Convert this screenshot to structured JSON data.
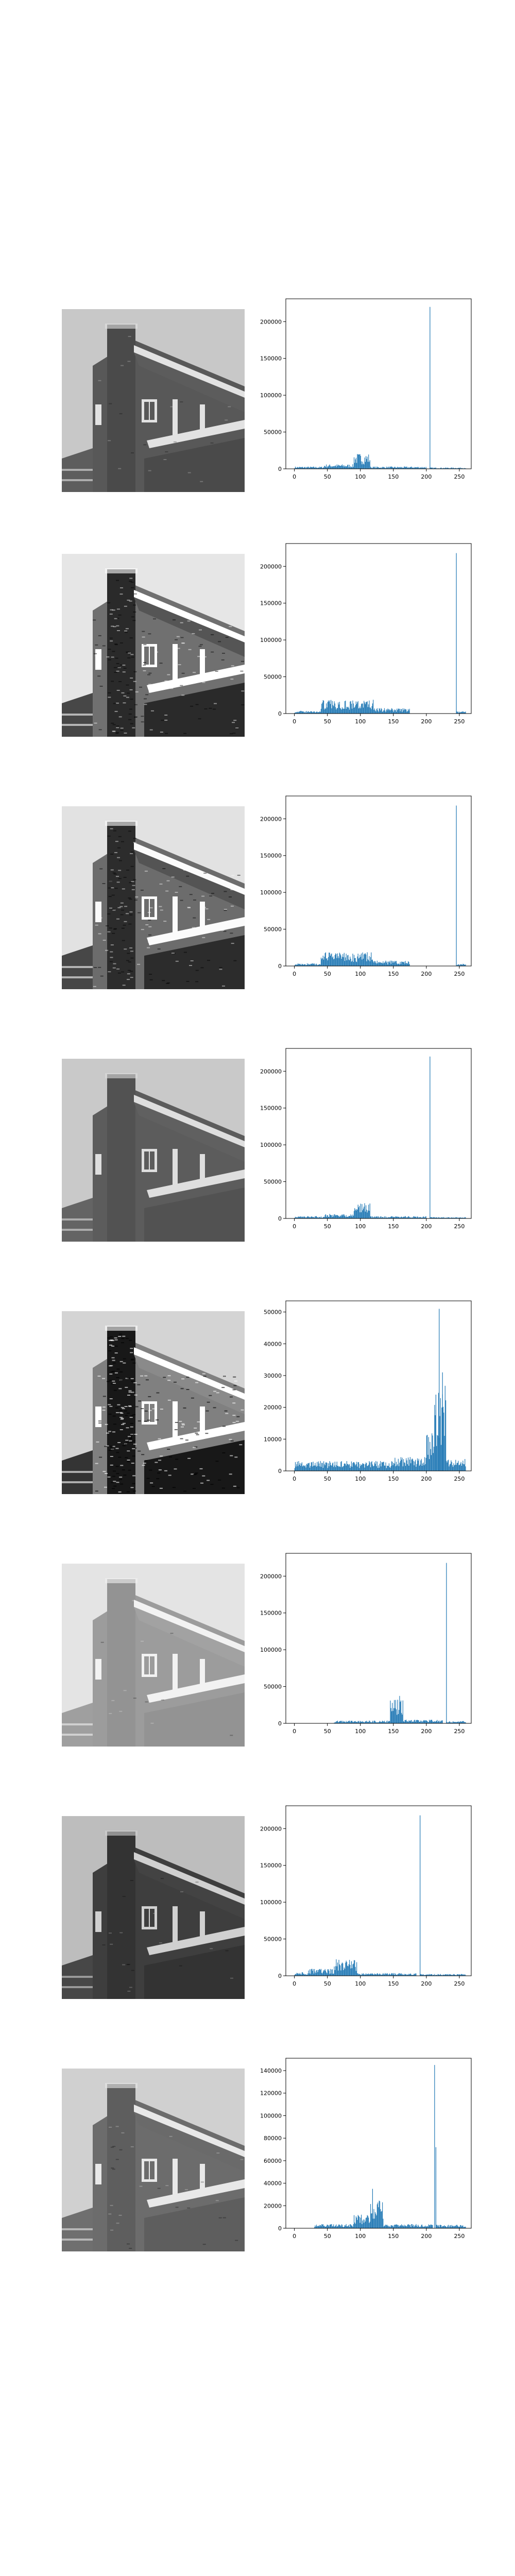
{
  "figure": {
    "background": "#ffffff",
    "bar_color": "#1f77b4",
    "axes_color": "#000000"
  },
  "chart_data": [
    {
      "type": "histogram",
      "image": "grayscale-house-original",
      "x_ticks": [
        0,
        50,
        100,
        150,
        200,
        250
      ],
      "y_ticks": [
        0,
        50000,
        100000,
        150000,
        200000
      ],
      "xlim": [
        -13,
        268
      ],
      "ylim": [
        0,
        231000
      ],
      "peaks": [
        {
          "x": 205,
          "y": 220000
        }
      ],
      "clusters": [
        {
          "from": 0,
          "to": 45,
          "level": 2500
        },
        {
          "from": 45,
          "to": 90,
          "level": 5000
        },
        {
          "from": 90,
          "to": 115,
          "level": 17000
        },
        {
          "from": 115,
          "to": 200,
          "level": 2500
        },
        {
          "from": 205,
          "to": 260,
          "level": 1500
        }
      ]
    },
    {
      "type": "histogram",
      "image": "grayscale-house-equalized",
      "x_ticks": [
        0,
        50,
        100,
        150,
        200,
        250
      ],
      "y_ticks": [
        0,
        50000,
        100000,
        150000,
        200000
      ],
      "xlim": [
        -13,
        268
      ],
      "ylim": [
        0,
        231000
      ],
      "peaks": [
        {
          "x": 245,
          "y": 218000
        }
      ],
      "clusters": [
        {
          "from": 0,
          "to": 40,
          "level": 3000
        },
        {
          "from": 40,
          "to": 120,
          "level": 15000
        },
        {
          "from": 120,
          "to": 175,
          "level": 6000
        },
        {
          "from": 245,
          "to": 260,
          "level": 2500
        }
      ]
    },
    {
      "type": "histogram",
      "image": "grayscale-house-equalized-variant",
      "x_ticks": [
        0,
        50,
        100,
        150,
        200,
        250
      ],
      "y_ticks": [
        0,
        50000,
        100000,
        150000,
        200000
      ],
      "xlim": [
        -13,
        268
      ],
      "ylim": [
        0,
        231000
      ],
      "peaks": [
        {
          "x": 245,
          "y": 218000
        }
      ],
      "clusters": [
        {
          "from": 0,
          "to": 40,
          "level": 3000
        },
        {
          "from": 40,
          "to": 120,
          "level": 15000
        },
        {
          "from": 120,
          "to": 175,
          "level": 6000
        },
        {
          "from": 245,
          "to": 260,
          "level": 2500
        }
      ]
    },
    {
      "type": "histogram",
      "image": "grayscale-house-smoothed",
      "x_ticks": [
        0,
        50,
        100,
        150,
        200,
        250
      ],
      "y_ticks": [
        0,
        50000,
        100000,
        150000,
        200000
      ],
      "xlim": [
        -13,
        268
      ],
      "ylim": [
        0,
        231000
      ],
      "peaks": [
        {
          "x": 205,
          "y": 220000
        }
      ],
      "clusters": [
        {
          "from": 0,
          "to": 45,
          "level": 2500
        },
        {
          "from": 45,
          "to": 90,
          "level": 5000
        },
        {
          "from": 90,
          "to": 115,
          "level": 17000
        },
        {
          "from": 115,
          "to": 200,
          "level": 2500
        },
        {
          "from": 205,
          "to": 260,
          "level": 1500
        }
      ]
    },
    {
      "type": "histogram",
      "image": "grayscale-house-sharpened",
      "x_ticks": [
        0,
        50,
        100,
        150,
        200,
        250
      ],
      "y_ticks": [
        0,
        10000,
        20000,
        30000,
        40000,
        50000
      ],
      "xlim": [
        -13,
        268
      ],
      "ylim": [
        0,
        53500
      ],
      "peaks": [
        {
          "x": 219,
          "y": 51000
        },
        {
          "x": 224,
          "y": 31000
        },
        {
          "x": 214,
          "y": 24000
        }
      ],
      "clusters": [
        {
          "from": 0,
          "to": 150,
          "level": 2500
        },
        {
          "from": 150,
          "to": 200,
          "level": 3500
        },
        {
          "from": 200,
          "to": 212,
          "level": 10000
        },
        {
          "from": 212,
          "to": 230,
          "level": 22000
        },
        {
          "from": 230,
          "to": 260,
          "level": 3000
        }
      ]
    },
    {
      "type": "histogram",
      "image": "grayscale-house-brightened",
      "x_ticks": [
        0,
        50,
        100,
        150,
        200,
        250
      ],
      "y_ticks": [
        0,
        50000,
        100000,
        150000,
        200000
      ],
      "xlim": [
        -13,
        268
      ],
      "ylim": [
        0,
        231000
      ],
      "peaks": [
        {
          "x": 230,
          "y": 218000
        }
      ],
      "clusters": [
        {
          "from": 60,
          "to": 145,
          "level": 3000
        },
        {
          "from": 145,
          "to": 165,
          "level": 30000
        },
        {
          "from": 165,
          "to": 225,
          "level": 4000
        },
        {
          "from": 230,
          "to": 260,
          "level": 2500
        }
      ]
    },
    {
      "type": "histogram",
      "image": "grayscale-house-darkened",
      "x_ticks": [
        0,
        50,
        100,
        150,
        200,
        250
      ],
      "y_ticks": [
        0,
        50000,
        100000,
        150000,
        200000
      ],
      "xlim": [
        -13,
        268
      ],
      "ylim": [
        0,
        231000
      ],
      "peaks": [
        {
          "x": 190,
          "y": 218000
        }
      ],
      "clusters": [
        {
          "from": 0,
          "to": 20,
          "level": 4000
        },
        {
          "from": 20,
          "to": 60,
          "level": 8000
        },
        {
          "from": 60,
          "to": 95,
          "level": 18000
        },
        {
          "from": 95,
          "to": 185,
          "level": 3000
        },
        {
          "from": 190,
          "to": 260,
          "level": 2000
        }
      ]
    },
    {
      "type": "histogram",
      "image": "grayscale-house-contrast-adjusted",
      "x_ticks": [
        0,
        50,
        100,
        150,
        200,
        250
      ],
      "y_ticks": [
        0,
        20000,
        40000,
        60000,
        80000,
        100000,
        120000,
        140000
      ],
      "xlim": [
        -13,
        268
      ],
      "ylim": [
        0,
        151000
      ],
      "peaks": [
        {
          "x": 212,
          "y": 145000
        },
        {
          "x": 214,
          "y": 72000
        },
        {
          "x": 118,
          "y": 35000
        }
      ],
      "clusters": [
        {
          "from": 30,
          "to": 90,
          "level": 3000
        },
        {
          "from": 90,
          "to": 115,
          "level": 10000
        },
        {
          "from": 115,
          "to": 135,
          "level": 22000
        },
        {
          "from": 135,
          "to": 210,
          "level": 3000
        },
        {
          "from": 215,
          "to": 260,
          "level": 2500
        }
      ]
    }
  ]
}
